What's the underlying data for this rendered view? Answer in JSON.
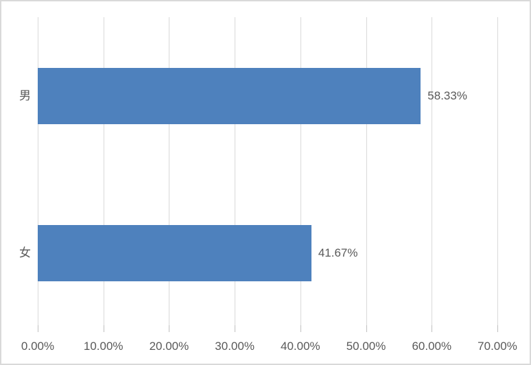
{
  "chart": {
    "colors": {
      "bar": "#4E81BD",
      "text": "#595959",
      "gridline": "#D9D9D9",
      "tick": "#BFBFBF",
      "border": "#D9D9D9",
      "background": "#FFFFFF"
    }
  },
  "chart_data": {
    "type": "bar",
    "orientation": "horizontal",
    "title": "",
    "categories": [
      "男",
      "女"
    ],
    "series": [
      {
        "name": "",
        "values": [
          58.33,
          41.67
        ]
      }
    ],
    "values": [
      58.33,
      41.67
    ],
    "data_labels": [
      "58.33%",
      "41.67%"
    ],
    "x_tick_labels": [
      "0.00%",
      "10.00%",
      "20.00%",
      "30.00%",
      "40.00%",
      "50.00%",
      "60.00%",
      "70.00%"
    ],
    "x_tick_values": [
      0,
      10,
      20,
      30,
      40,
      50,
      60,
      70
    ],
    "xlim": [
      0,
      70
    ],
    "grid": true,
    "legend": false
  }
}
